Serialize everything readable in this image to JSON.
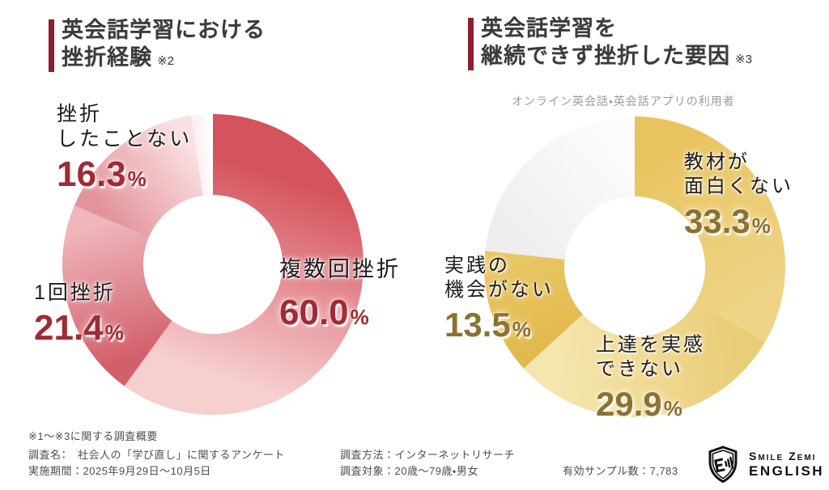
{
  "chart_data": [
    {
      "type": "pie",
      "variant": "donut",
      "title": "英会話学習における挫折経験",
      "title_lines": [
        "英会話学習における",
        "挫折経験"
      ],
      "title_note": "※2",
      "accent_color": "#8c1f2f",
      "value_color": "#9e2b35",
      "legend_position": "around",
      "segments": [
        {
          "label": "複数回挫折",
          "label_lines": [
            "複数回挫折"
          ],
          "value": 60.0,
          "display_value": "60.0",
          "unit": "%",
          "color_start": "#d5535d",
          "color_end": "#f6cfcf"
        },
        {
          "label": "1回挫折",
          "label_lines": [
            "1回挫折"
          ],
          "value": 21.4,
          "display_value": "21.4",
          "unit": "%",
          "color_start": "#d2606b",
          "color_end": "#efb6bb"
        },
        {
          "label": "挫折したことない",
          "label_lines": [
            "挫折",
            "したことない"
          ],
          "value": 16.3,
          "display_value": "16.3",
          "unit": "%",
          "color_start": "#e4939b",
          "color_end": "#f9e0e2"
        },
        {
          "label": "",
          "label_lines": [],
          "value": 2.3,
          "display_value": "",
          "unit": "",
          "color_start": "#fbeff0",
          "color_end": "#ffffff"
        }
      ]
    },
    {
      "type": "pie",
      "variant": "donut",
      "title": "英会話学習を継続できず挫折した要因",
      "title_lines": [
        "英会話学習を",
        "継続できず挫折した要因"
      ],
      "title_note": "※3",
      "subtitle": "オンライン英会話・英会話アプリの利用者",
      "accent_color": "#8c1f2f",
      "value_color": "#8a7233",
      "legend_position": "around",
      "segments": [
        {
          "label": "教材が面白くない",
          "label_lines": [
            "教材が",
            "面白くない"
          ],
          "value": 33.3,
          "display_value": "33.3",
          "unit": "%",
          "color_start": "#e8c35e",
          "color_end": "#efd488"
        },
        {
          "label": "上達を実感できない",
          "label_lines": [
            "上達を実感",
            "できない"
          ],
          "value": 29.9,
          "display_value": "29.9",
          "unit": "%",
          "color_start": "#eacd78",
          "color_end": "#f5e6ae"
        },
        {
          "label": "実践の機会がない",
          "label_lines": [
            "実践の",
            "機会がない"
          ],
          "value": 13.5,
          "display_value": "13.5",
          "unit": "%",
          "color_start": "#e2b94d",
          "color_end": "#e9c765"
        },
        {
          "label": "",
          "label_lines": [],
          "value": 23.3,
          "display_value": "",
          "unit": "",
          "color_start": "#efeeee",
          "color_end": "#fcfcfc"
        }
      ]
    }
  ],
  "footer": {
    "overview_heading": "※1〜※3に関する調査概要",
    "survey_name": "調査名：　社会人の「学び直し」に関するアンケート",
    "period": "実施期間：2025年9月29日〜10月5日",
    "method": "調査方法：インターネットリサーチ",
    "target": "調査対象：20歳〜79歳・男女",
    "sample": "有効サンプル数：7,783"
  },
  "logo": {
    "line1": "Smile Zemi",
    "line2": "ENGLISH"
  }
}
